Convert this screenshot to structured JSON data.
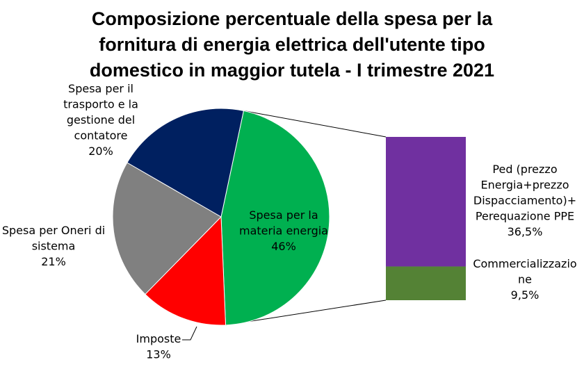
{
  "chart_data": {
    "type": "pie",
    "title_lines": [
      "Composizione percentuale della spesa per la",
      "fornitura di energia elettrica dell'utente tipo",
      "domestico in maggior tutela - I trimestre 2021"
    ],
    "slices": [
      {
        "name": "Spesa per la materia energia",
        "value": 46,
        "label_lines": [
          "Spesa per la",
          "materia energia"
        ],
        "pct_text": "46%",
        "color": "#00b050"
      },
      {
        "name": "Imposte",
        "value": 13,
        "label_lines": [
          "Imposte"
        ],
        "pct_text": "13%",
        "color": "#ff0000"
      },
      {
        "name": "Spesa per Oneri di sistema",
        "value": 21,
        "label_lines": [
          "Spesa per Oneri di",
          "sistema"
        ],
        "pct_text": "21%",
        "color": "#808080"
      },
      {
        "name": "Spesa per il trasporto e la gestione del contatore",
        "value": 20,
        "label_lines": [
          "Spesa per il",
          "trasporto e la",
          "gestione del",
          "contatore"
        ],
        "pct_text": "20%",
        "color": "#002060"
      }
    ],
    "breakdown": {
      "of": "Spesa per la materia energia",
      "items": [
        {
          "name": "Ped (prezzo Energia+prezzo Dispacciamento)+ Perequazione PPE",
          "value": 36.5,
          "label_lines": [
            "Ped (prezzo",
            "Energia+prezzo",
            "Dispacciamento)+",
            "Perequazione PPE"
          ],
          "pct_text": "36,5%",
          "color": "#7030a0"
        },
        {
          "name": "Commercializzazione",
          "value": 9.5,
          "label_lines": [
            "Commercializzazio",
            "ne"
          ],
          "pct_text": "9,5%",
          "color": "#548235"
        }
      ]
    }
  }
}
